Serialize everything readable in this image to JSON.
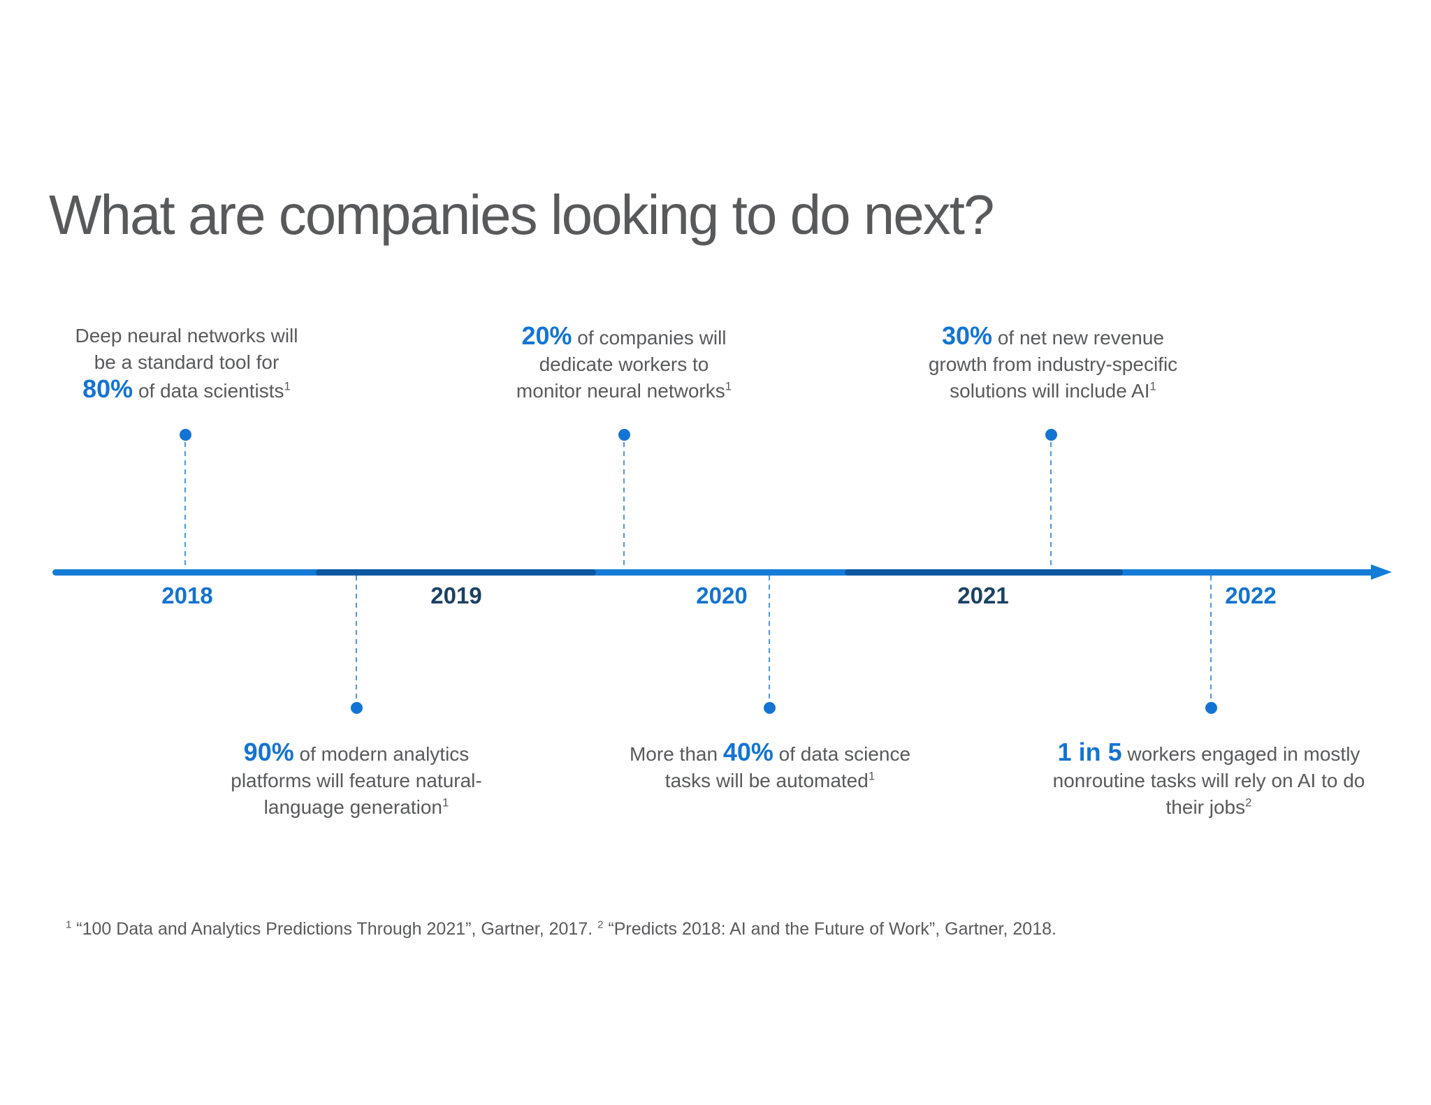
{
  "colors": {
    "accent": "#1374D4",
    "dash": "#4C97DC",
    "barBright": "#147CD7",
    "barDark": "#0B57A0",
    "yearBright": "#1473CF",
    "yearDark": "#1C4164",
    "gray": "#58595B"
  },
  "title": "What are companies looking to do next?",
  "timeline": {
    "years": [
      "2018",
      "2019",
      "2020",
      "2021",
      "2022"
    ]
  },
  "events_top": [
    {
      "parts": [
        {
          "t": "Deep neural networks will\nbe a standard tool for\n",
          "s": "g"
        },
        {
          "t": "80%",
          "s": "b"
        },
        {
          "t": " of data scientists",
          "s": "g"
        },
        {
          "t": "1",
          "s": "sup"
        }
      ]
    },
    {
      "parts": [
        {
          "t": "20%",
          "s": "b"
        },
        {
          "t": " of companies will\ndedicate workers to\nmonitor neural networks",
          "s": "g"
        },
        {
          "t": "1",
          "s": "sup"
        }
      ]
    },
    {
      "parts": [
        {
          "t": "30%",
          "s": "b"
        },
        {
          "t": " of net new revenue\ngrowth from industry-specific\nsolutions will include AI",
          "s": "g"
        },
        {
          "t": "1",
          "s": "sup"
        }
      ]
    }
  ],
  "events_bottom": [
    {
      "parts": [
        {
          "t": "90%",
          "s": "b"
        },
        {
          "t": " of modern analytics\nplatforms will feature natural-\nlanguage generation",
          "s": "g"
        },
        {
          "t": "1",
          "s": "sup"
        }
      ]
    },
    {
      "parts": [
        {
          "t": "More than ",
          "s": "g"
        },
        {
          "t": "40%",
          "s": "b"
        },
        {
          "t": " of data science\ntasks will be automated",
          "s": "g"
        },
        {
          "t": "1",
          "s": "sup"
        }
      ]
    },
    {
      "parts": [
        {
          "t": "1 in 5",
          "s": "b"
        },
        {
          "t": " workers engaged in mostly\nnonroutine tasks will rely on AI to do\ntheir jobs",
          "s": "g"
        },
        {
          "t": "2",
          "s": "sup"
        }
      ]
    }
  ],
  "footnote": {
    "parts": [
      {
        "t": "1",
        "s": "sup"
      },
      {
        "t": " “100 Data and Analytics Predictions Through 2021”, Gartner, 2017. ",
        "s": "g"
      },
      {
        "t": "2",
        "s": "sup"
      },
      {
        "t": " “Predicts 2018: AI and the Future of Work”, Gartner, 2018.",
        "s": "g"
      }
    ]
  }
}
